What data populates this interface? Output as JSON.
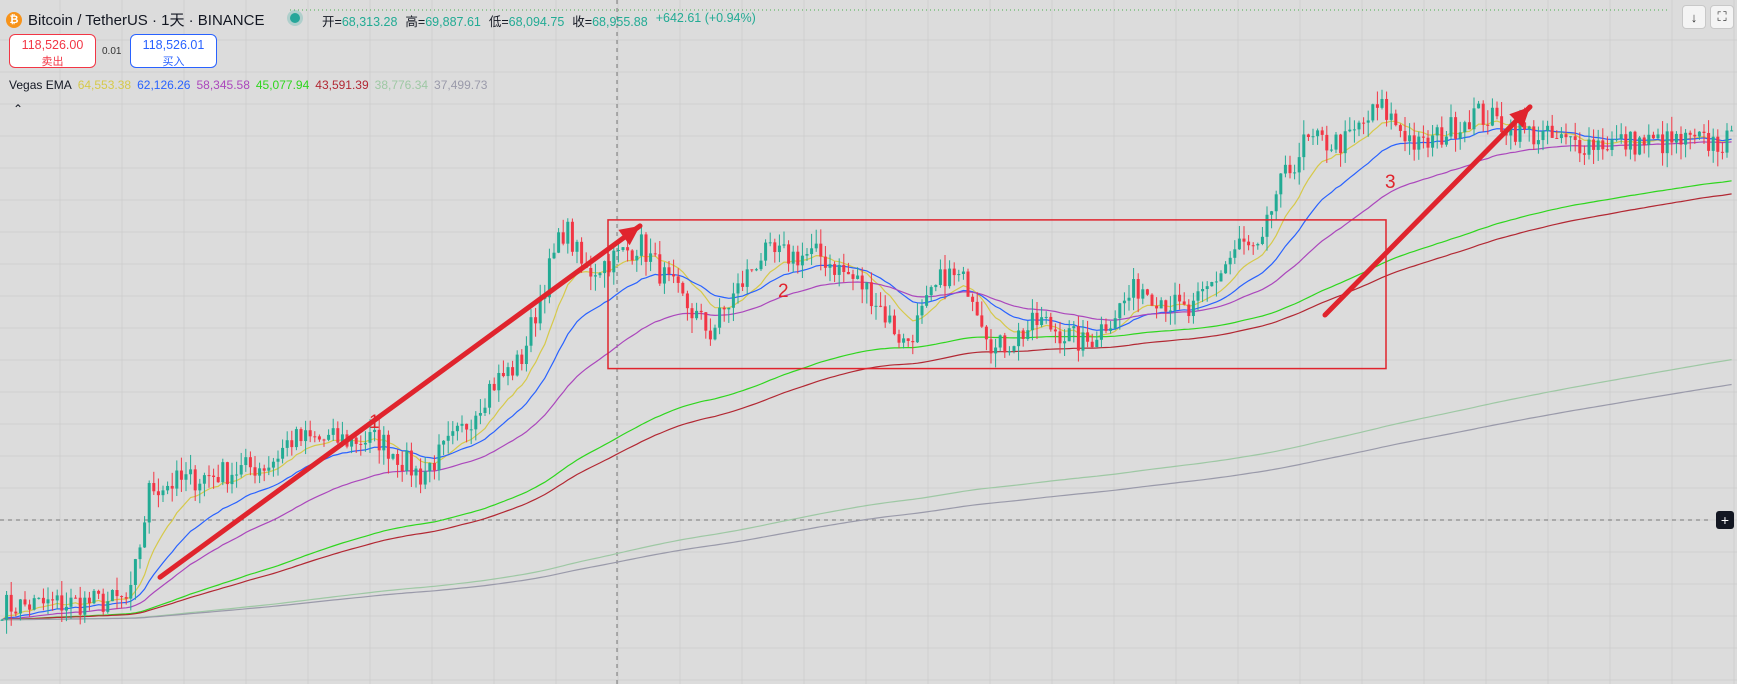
{
  "header": {
    "symbol": "Bitcoin / TetherUS · 1天 · BINANCE",
    "logo_glyph": "₿",
    "open_label": "开=",
    "open": "68,313.28",
    "high_label": "高=",
    "high": "69,887.61",
    "low_label": "低=",
    "low": "68,094.75",
    "close_label": "收=",
    "close": "68,955.88",
    "change": "+642.61 (+0.94%)",
    "positive_color": "#22ab94"
  },
  "trade": {
    "sell_price": "118,526.00",
    "sell_label": "卖出",
    "spread": "0.01",
    "buy_price": "118,526.01",
    "buy_label": "买入"
  },
  "indicator": {
    "name": "Vegas EMA",
    "values": [
      {
        "value": "64,553.38",
        "color": "#d6c94a"
      },
      {
        "value": "62,126.26",
        "color": "#2962ff"
      },
      {
        "value": "58,345.58",
        "color": "#ab47bc"
      },
      {
        "value": "45,077.94",
        "color": "#2fd61e"
      },
      {
        "value": "43,591.39",
        "color": "#b22833"
      },
      {
        "value": "38,776.34",
        "color": "#9ec8a4"
      },
      {
        "value": "37,499.73",
        "color": "#9a9aaa"
      }
    ]
  },
  "controls": {
    "collapse_icon": "⌃",
    "download_icon": "↓",
    "fullscreen_icon": "⛶",
    "crosshair_plus_icon": "+"
  },
  "annotations": {
    "label1": "1",
    "label2": "2",
    "label3": "3",
    "arrow_color": "#e0242d"
  },
  "chart_data": {
    "type": "candlestick",
    "title": "Bitcoin / TetherUS · 1天 · BINANCE",
    "ylim": [
      62000,
      71500
    ],
    "grid": true,
    "key_points": [
      {
        "x": 0,
        "close": 62900
      },
      {
        "x": 130,
        "close": 63000
      },
      {
        "x": 150,
        "close": 64900
      },
      {
        "x": 270,
        "close": 65300
      },
      {
        "x": 290,
        "close": 65700
      },
      {
        "x": 380,
        "close": 65700
      },
      {
        "x": 420,
        "close": 65100
      },
      {
        "x": 460,
        "close": 65800
      },
      {
        "x": 490,
        "close": 66600
      },
      {
        "x": 520,
        "close": 67000
      },
      {
        "x": 550,
        "close": 68600
      },
      {
        "x": 565,
        "close": 69300
      },
      {
        "x": 585,
        "close": 68500
      },
      {
        "x": 640,
        "close": 69000
      },
      {
        "x": 670,
        "close": 68300
      },
      {
        "x": 710,
        "close": 67500
      },
      {
        "x": 760,
        "close": 68800
      },
      {
        "x": 820,
        "close": 68800
      },
      {
        "x": 870,
        "close": 68200
      },
      {
        "x": 905,
        "close": 67300
      },
      {
        "x": 945,
        "close": 68500
      },
      {
        "x": 970,
        "close": 68300
      },
      {
        "x": 995,
        "close": 67200
      },
      {
        "x": 1040,
        "close": 67700
      },
      {
        "x": 1085,
        "close": 67300
      },
      {
        "x": 1140,
        "close": 68300
      },
      {
        "x": 1190,
        "close": 67800
      },
      {
        "x": 1240,
        "close": 69000
      },
      {
        "x": 1260,
        "close": 68800
      },
      {
        "x": 1275,
        "close": 69800
      },
      {
        "x": 1305,
        "close": 70700
      },
      {
        "x": 1345,
        "close": 70700
      },
      {
        "x": 1380,
        "close": 71300
      },
      {
        "x": 1420,
        "close": 70600
      },
      {
        "x": 1475,
        "close": 71200
      },
      {
        "x": 1520,
        "close": 70900
      },
      {
        "x": 1565,
        "close": 70700
      }
    ],
    "ema_series": [
      {
        "name": "Vegas EMA",
        "value": 64553.38,
        "color": "#d6c94a"
      },
      {
        "name": "Vegas EMA",
        "value": 62126.26,
        "color": "#2962ff"
      },
      {
        "name": "Vegas EMA",
        "value": 58345.58,
        "color": "#ab47bc"
      },
      {
        "name": "Vegas EMA",
        "value": 45077.94,
        "color": "#2fd61e"
      },
      {
        "name": "Vegas EMA",
        "value": 43591.39,
        "color": "#b22833"
      },
      {
        "name": "Vegas EMA",
        "value": 38776.34,
        "color": "#9ec8a4"
      },
      {
        "name": "Vegas EMA",
        "value": 37499.73,
        "color": "#9a9aaa"
      }
    ],
    "up_color": "#22ab94",
    "down_color": "#f23645"
  }
}
